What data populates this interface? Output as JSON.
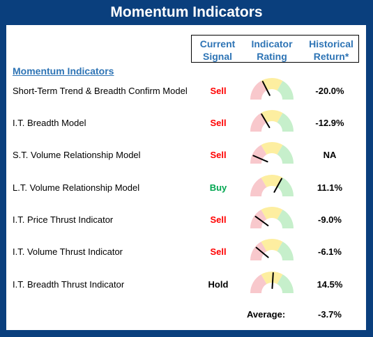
{
  "title": "Momentum Indicators",
  "headers": {
    "current_signal": [
      "Current",
      "Signal"
    ],
    "indicator_rating": [
      "Indicator",
      "Rating"
    ],
    "historical_return": [
      "Historical",
      "Return*"
    ]
  },
  "section_title": "Momentum Indicators",
  "colors": {
    "frame": "#0a3f7d",
    "header_text": "#2e74b5",
    "sell": "#ff0000",
    "buy": "#00a650",
    "hold": "#000000",
    "gauge_red": "#f8c8cc",
    "gauge_yellow": "#fdeea0",
    "gauge_green": "#c6efcb"
  },
  "rows": [
    {
      "name": "Short-Term Trend & Breadth Confirm Model",
      "signal": "Sell",
      "signal_type": "sell",
      "rating": 0.35,
      "return": "-20.0%"
    },
    {
      "name": "I.T. Breadth Model",
      "signal": "Sell",
      "signal_type": "sell",
      "rating": 0.33,
      "return": "-12.9%"
    },
    {
      "name": "S.T. Volume Relationship Model",
      "signal": "Sell",
      "signal_type": "sell",
      "rating": 0.13,
      "return": "NA"
    },
    {
      "name": "L.T. Volume Relationship Model",
      "signal": "Buy",
      "signal_type": "buy",
      "rating": 0.66,
      "return": "11.1%"
    },
    {
      "name": "I.T. Price Thrust Indicator",
      "signal": "Sell",
      "signal_type": "sell",
      "rating": 0.2,
      "return": "-9.0%"
    },
    {
      "name": "I.T. Volume Thrust Indicator",
      "signal": "Sell",
      "signal_type": "sell",
      "rating": 0.22,
      "return": "-6.1%"
    },
    {
      "name": "I.T. Breadth Thrust Indicator",
      "signal": "Hold",
      "signal_type": "hold",
      "rating": 0.52,
      "return": "14.5%"
    }
  ],
  "average_label": "Average:",
  "average_value": "-3.7%"
}
